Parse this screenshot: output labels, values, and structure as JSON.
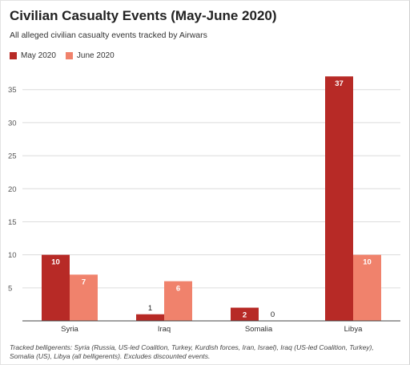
{
  "chart_data": {
    "type": "bar",
    "title": "Civilian Casualty Events (May-June 2020)",
    "subtitle": "All alleged civilian casualty events tracked by Airwars",
    "categories": [
      "Syria",
      "Iraq",
      "Somalia",
      "Libya"
    ],
    "series": [
      {
        "name": "May 2020",
        "color": "#b72a26",
        "values": [
          10,
          1,
          2,
          37
        ]
      },
      {
        "name": "June 2020",
        "color": "#f0826c",
        "values": [
          7,
          6,
          0,
          10
        ]
      }
    ],
    "ylim": [
      0,
      38
    ],
    "yticks": [
      5,
      10,
      15,
      20,
      25,
      30,
      35
    ],
    "grid": true,
    "legend": "top-left",
    "xlabel": "",
    "ylabel": "",
    "note": "Tracked belligerents: Syria (Russia, US-led Coalition, Turkey, Kurdish forces, Iran, Israel), Iraq (US-led Coalition, Turkey), Somalia (US), Libya (all belligerents). Excludes discounted events."
  }
}
